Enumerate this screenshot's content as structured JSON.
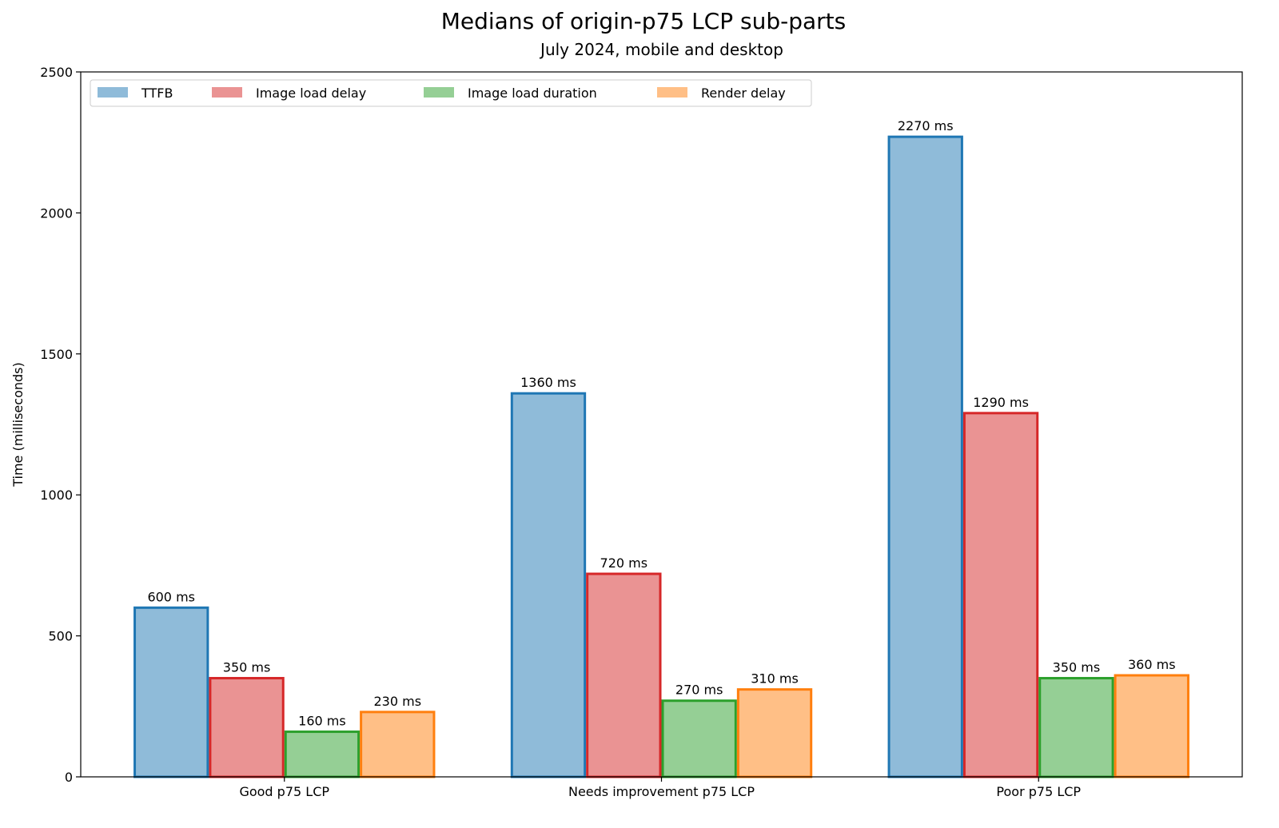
{
  "chart_data": {
    "type": "bar",
    "title": "Medians of origin-p75 LCP sub-parts",
    "subtitle": "July 2024, mobile and desktop",
    "xlabel": "",
    "ylabel": "Time (milliseconds)",
    "ylim": [
      0,
      2500
    ],
    "yticks": [
      0,
      500,
      1000,
      1500,
      2000,
      2500
    ],
    "categories": [
      "Good p75 LCP",
      "Needs improvement p75 LCP",
      "Poor p75 LCP"
    ],
    "grid": false,
    "legend_position": "top-left",
    "data_label_unit": "ms",
    "series": [
      {
        "name": "TTFB",
        "values": [
          600,
          1360,
          2270
        ],
        "edge": "#1f77b4",
        "fill": "#8fbbd9"
      },
      {
        "name": "Image load delay",
        "values": [
          350,
          720,
          1290
        ],
        "edge": "#d62728",
        "fill": "#ea9393"
      },
      {
        "name": "Image load duration",
        "values": [
          160,
          270,
          350
        ],
        "edge": "#2ca02c",
        "fill": "#95cf95"
      },
      {
        "name": "Render delay",
        "values": [
          230,
          310,
          360
        ],
        "edge": "#ff7f0e",
        "fill": "#ffbf86"
      }
    ]
  }
}
